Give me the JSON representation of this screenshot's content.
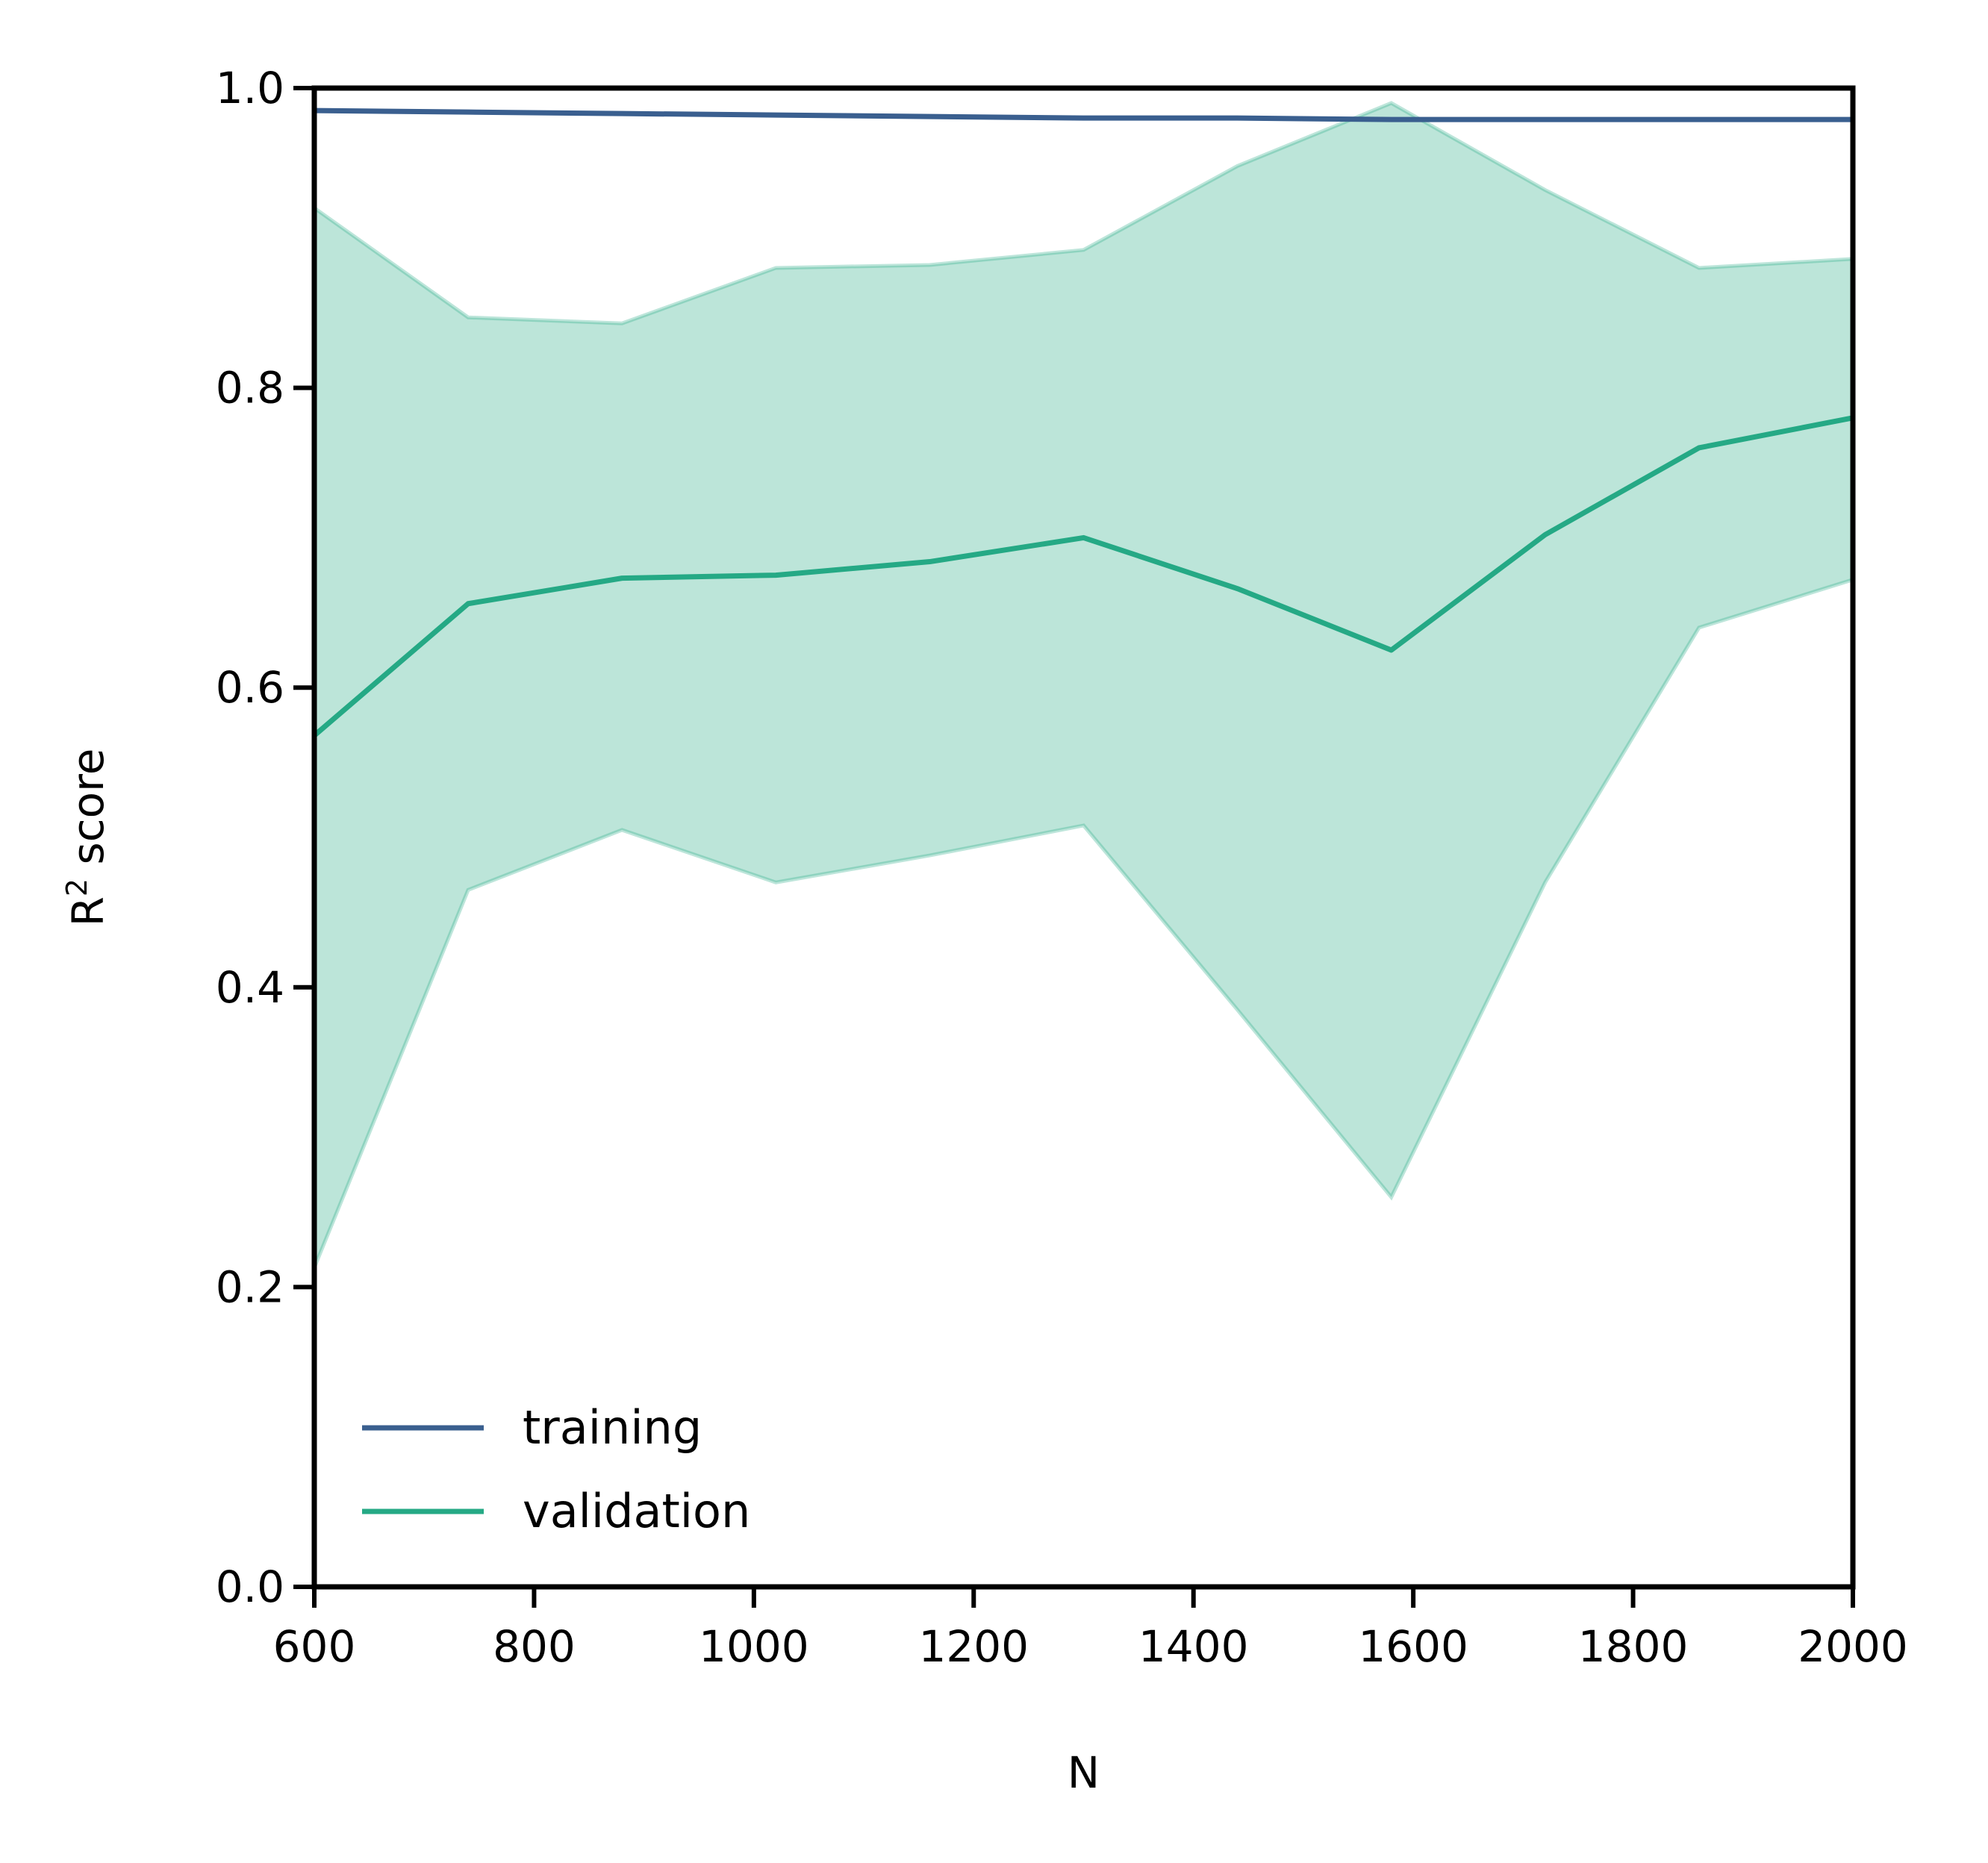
{
  "chart_data": {
    "type": "line",
    "x": [
      600,
      740,
      880,
      1020,
      1160,
      1300,
      1440,
      1580,
      1720,
      1860,
      2000
    ],
    "series": [
      {
        "name": "training",
        "color": "#3a5f8f",
        "values": [
          0.985,
          0.984,
          0.983,
          0.982,
          0.981,
          0.98,
          0.98,
          0.979,
          0.979,
          0.979,
          0.979
        ]
      },
      {
        "name": "validation",
        "color": "#25a985",
        "values": [
          0.568,
          0.656,
          0.673,
          0.675,
          0.684,
          0.7,
          0.666,
          0.625,
          0.702,
          0.76,
          0.78
        ],
        "band_upper": [
          0.92,
          0.847,
          0.843,
          0.88,
          0.882,
          0.892,
          0.948,
          0.99,
          0.932,
          0.88,
          0.886
        ],
        "band_lower": [
          0.213,
          0.465,
          0.505,
          0.47,
          0.488,
          0.508,
          0.385,
          0.26,
          0.47,
          0.64,
          0.672
        ],
        "band_color": "#bce5d9"
      }
    ],
    "xlabel": "N",
    "ylabel": "R² score",
    "xlim": [
      600,
      2000
    ],
    "ylim": [
      0.0,
      1.0
    ],
    "xticks": [
      600,
      800,
      1000,
      1200,
      1400,
      1600,
      1800,
      2000
    ],
    "xtick_labels": [
      "600",
      "800",
      "1000",
      "1200",
      "1400",
      "1600",
      "1800",
      "2000"
    ],
    "yticks": [
      0.0,
      0.2,
      0.4,
      0.6,
      0.8,
      1.0
    ],
    "ytick_labels": [
      "0.0",
      "0.2",
      "0.4",
      "0.6",
      "0.8",
      "1.0"
    ],
    "grid": false,
    "legend_position": "lower-left"
  }
}
